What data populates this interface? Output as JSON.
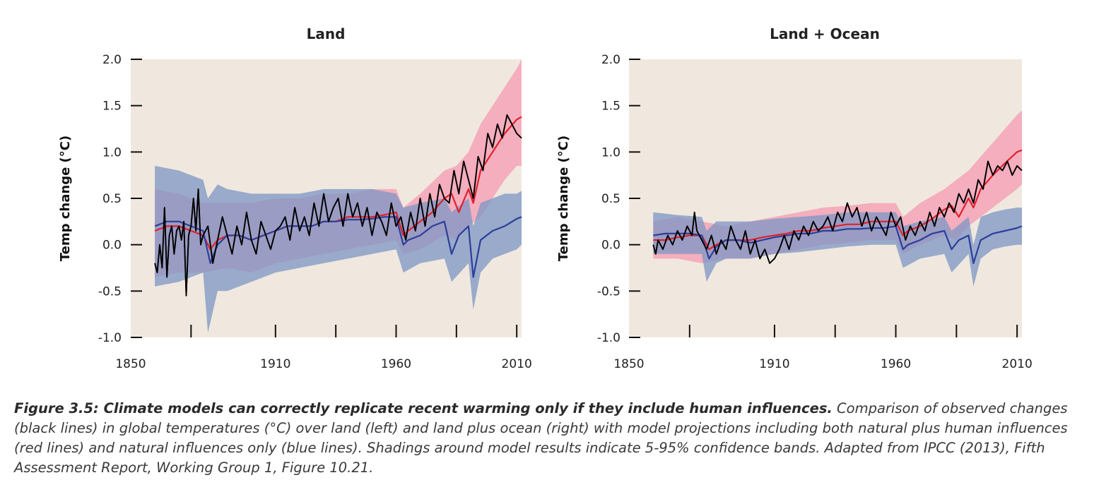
{
  "colors": {
    "plot_bg": "#f0e8de",
    "red_band": "#f4a3b8",
    "blue_band": "#7c95c4",
    "overlap_band": "#8878a8",
    "red_line": "#e1202e",
    "blue_line": "#2c3f9a",
    "obs_line": "#000000"
  },
  "chart_data": [
    {
      "type": "line",
      "title": "Land",
      "xlabel": "",
      "ylabel": "Temp change (°C)",
      "xlim": [
        1850,
        2012
      ],
      "ylim": [
        -1.0,
        2.0
      ],
      "x_ticks": [
        1850,
        1910,
        1960,
        2010
      ],
      "x_minor_ticks": [
        1875,
        1910,
        1935,
        1960,
        1985,
        2010
      ],
      "y_ticks": [
        "2.0",
        "1.5",
        "1.0",
        "0.5",
        "0.0",
        "-0.5",
        "-1.0"
      ],
      "grid": false,
      "series": [
        {
          "key": "obs",
          "x": [
            1860,
            1861,
            1862,
            1863,
            1864,
            1865,
            1866,
            1867,
            1868,
            1869,
            1870,
            1871,
            1872,
            1873,
            1874,
            1875,
            1876,
            1877,
            1878,
            1879,
            1880,
            1882,
            1884,
            1886,
            1888,
            1890,
            1892,
            1894,
            1896,
            1898,
            1900,
            1902,
            1904,
            1906,
            1908,
            1910,
            1912,
            1914,
            1916,
            1918,
            1920,
            1922,
            1924,
            1926,
            1928,
            1930,
            1932,
            1934,
            1936,
            1938,
            1940,
            1942,
            1944,
            1946,
            1948,
            1950,
            1952,
            1954,
            1956,
            1958,
            1960,
            1962,
            1964,
            1966,
            1968,
            1970,
            1972,
            1974,
            1976,
            1978,
            1980,
            1982,
            1984,
            1986,
            1988,
            1990,
            1992,
            1994,
            1996,
            1998,
            2000,
            2002,
            2004,
            2006,
            2008,
            2010,
            2012
          ],
          "y": [
            -0.2,
            -0.3,
            0.0,
            -0.25,
            0.4,
            -0.35,
            0.1,
            0.2,
            -0.1,
            0.15,
            0.2,
            0.05,
            0.25,
            -0.55,
            0.1,
            0.2,
            0.5,
            0.15,
            0.6,
            0.0,
            0.1,
            0.2,
            -0.2,
            0.05,
            0.3,
            0.1,
            -0.1,
            0.2,
            0.0,
            0.35,
            0.05,
            -0.1,
            0.25,
            0.1,
            -0.05,
            0.15,
            0.2,
            0.3,
            0.05,
            0.4,
            0.15,
            0.3,
            0.1,
            0.45,
            0.2,
            0.55,
            0.25,
            0.4,
            0.5,
            0.2,
            0.55,
            0.3,
            0.45,
            0.2,
            0.4,
            0.1,
            0.35,
            0.25,
            0.1,
            0.45,
            0.2,
            0.3,
            0.05,
            0.35,
            0.15,
            0.5,
            0.2,
            0.55,
            0.3,
            0.65,
            0.5,
            0.45,
            0.8,
            0.55,
            0.9,
            0.7,
            0.5,
            0.95,
            0.8,
            1.2,
            1.05,
            1.3,
            1.15,
            1.4,
            1.3,
            1.2,
            1.15
          ]
        },
        {
          "key": "red",
          "x": [
            1860,
            1865,
            1870,
            1875,
            1880,
            1883,
            1886,
            1890,
            1895,
            1900,
            1905,
            1910,
            1915,
            1920,
            1925,
            1930,
            1935,
            1940,
            1945,
            1950,
            1955,
            1960,
            1963,
            1965,
            1970,
            1975,
            1980,
            1983,
            1986,
            1990,
            1992,
            1995,
            2000,
            2005,
            2010,
            2012
          ],
          "y": [
            0.15,
            0.2,
            0.2,
            0.15,
            0.1,
            -0.05,
            0.05,
            0.1,
            0.1,
            0.05,
            0.1,
            0.15,
            0.2,
            0.2,
            0.2,
            0.25,
            0.25,
            0.3,
            0.3,
            0.3,
            0.32,
            0.35,
            0.1,
            0.15,
            0.25,
            0.35,
            0.5,
            0.55,
            0.35,
            0.6,
            0.45,
            0.8,
            1.0,
            1.2,
            1.35,
            1.38
          ]
        },
        {
          "key": "blue",
          "x": [
            1860,
            1865,
            1870,
            1875,
            1880,
            1883,
            1886,
            1890,
            1895,
            1900,
            1905,
            1910,
            1915,
            1920,
            1925,
            1930,
            1935,
            1940,
            1945,
            1950,
            1955,
            1960,
            1963,
            1965,
            1970,
            1975,
            1980,
            1983,
            1986,
            1990,
            1992,
            1995,
            2000,
            2005,
            2010,
            2012
          ],
          "y": [
            0.2,
            0.25,
            0.25,
            0.2,
            0.15,
            -0.2,
            0.0,
            0.1,
            0.1,
            0.05,
            0.1,
            0.15,
            0.2,
            0.2,
            0.2,
            0.25,
            0.25,
            0.27,
            0.27,
            0.28,
            0.3,
            0.3,
            0.0,
            0.05,
            0.1,
            0.2,
            0.25,
            -0.1,
            0.1,
            0.2,
            -0.35,
            0.05,
            0.15,
            0.2,
            0.28,
            0.3
          ]
        }
      ],
      "bands": [
        {
          "key": "red",
          "x": [
            1860,
            1870,
            1880,
            1890,
            1900,
            1910,
            1920,
            1930,
            1940,
            1950,
            1960,
            1963,
            1970,
            1980,
            1985,
            1990,
            1995,
            2000,
            2005,
            2010,
            2012
          ],
          "upper": [
            0.6,
            0.55,
            0.45,
            0.45,
            0.45,
            0.5,
            0.5,
            0.55,
            0.55,
            0.6,
            0.6,
            0.4,
            0.55,
            0.8,
            0.85,
            1.0,
            1.3,
            1.5,
            1.7,
            1.9,
            2.0
          ],
          "lower": [
            -0.35,
            -0.3,
            -0.3,
            -0.25,
            -0.3,
            -0.2,
            -0.15,
            -0.1,
            -0.05,
            0.0,
            0.05,
            -0.1,
            -0.05,
            0.1,
            0.05,
            0.2,
            0.3,
            0.5,
            0.7,
            0.85,
            0.85
          ]
        },
        {
          "key": "blue",
          "x": [
            1860,
            1870,
            1880,
            1882,
            1886,
            1890,
            1900,
            1910,
            1920,
            1930,
            1940,
            1950,
            1960,
            1963,
            1970,
            1980,
            1983,
            1990,
            1992,
            1995,
            2000,
            2005,
            2010,
            2012
          ],
          "upper": [
            0.85,
            0.8,
            0.7,
            0.5,
            0.65,
            0.6,
            0.55,
            0.55,
            0.55,
            0.6,
            0.6,
            0.6,
            0.55,
            0.4,
            0.45,
            0.5,
            0.35,
            0.5,
            0.2,
            0.45,
            0.5,
            0.55,
            0.55,
            0.58
          ],
          "lower": [
            -0.45,
            -0.4,
            -0.3,
            -0.95,
            -0.5,
            -0.5,
            -0.4,
            -0.3,
            -0.25,
            -0.2,
            -0.15,
            -0.1,
            -0.05,
            -0.3,
            -0.2,
            -0.15,
            -0.4,
            -0.2,
            -0.7,
            -0.3,
            -0.15,
            -0.1,
            -0.05,
            0.0
          ]
        }
      ]
    },
    {
      "type": "line",
      "title": "Land + Ocean",
      "xlabel": "",
      "ylabel": "Temp change (°C)",
      "xlim": [
        1850,
        2012
      ],
      "ylim": [
        -1.0,
        2.0
      ],
      "x_ticks": [
        1850,
        1910,
        1960,
        2010
      ],
      "x_minor_ticks": [
        1875,
        1910,
        1935,
        1960,
        1985,
        2010
      ],
      "y_ticks": [
        "2.0",
        "1.5",
        "1.0",
        "0.5",
        "0.0",
        "-0.5",
        "-1.0"
      ],
      "grid": false,
      "series": [
        {
          "key": "obs",
          "x": [
            1860,
            1861,
            1862,
            1864,
            1866,
            1868,
            1870,
            1872,
            1874,
            1876,
            1877,
            1878,
            1880,
            1882,
            1884,
            1886,
            1888,
            1890,
            1892,
            1894,
            1896,
            1898,
            1900,
            1902,
            1904,
            1906,
            1908,
            1910,
            1912,
            1914,
            1916,
            1918,
            1920,
            1922,
            1924,
            1926,
            1928,
            1930,
            1932,
            1934,
            1936,
            1938,
            1940,
            1942,
            1944,
            1946,
            1948,
            1950,
            1952,
            1954,
            1956,
            1958,
            1960,
            1962,
            1964,
            1966,
            1968,
            1970,
            1972,
            1974,
            1976,
            1978,
            1980,
            1982,
            1984,
            1986,
            1988,
            1990,
            1992,
            1994,
            1996,
            1998,
            2000,
            2002,
            2004,
            2006,
            2008,
            2010,
            2012
          ],
          "y": [
            0.0,
            -0.1,
            0.05,
            -0.05,
            0.1,
            0.0,
            0.15,
            0.05,
            0.2,
            0.1,
            0.35,
            0.15,
            0.05,
            -0.05,
            0.1,
            -0.1,
            0.05,
            -0.05,
            0.2,
            0.05,
            -0.05,
            0.15,
            -0.1,
            0.05,
            -0.15,
            -0.05,
            -0.2,
            -0.15,
            -0.05,
            0.1,
            -0.05,
            0.15,
            0.05,
            0.2,
            0.1,
            0.25,
            0.15,
            0.2,
            0.3,
            0.15,
            0.35,
            0.25,
            0.45,
            0.3,
            0.4,
            0.2,
            0.35,
            0.15,
            0.3,
            0.2,
            0.1,
            0.35,
            0.2,
            0.3,
            0.05,
            0.2,
            0.1,
            0.25,
            0.15,
            0.35,
            0.2,
            0.4,
            0.3,
            0.45,
            0.35,
            0.55,
            0.45,
            0.6,
            0.45,
            0.7,
            0.6,
            0.9,
            0.75,
            0.85,
            0.8,
            0.9,
            0.75,
            0.85,
            0.8
          ]
        },
        {
          "key": "red",
          "x": [
            1860,
            1865,
            1870,
            1875,
            1880,
            1883,
            1886,
            1890,
            1895,
            1900,
            1905,
            1910,
            1915,
            1920,
            1925,
            1930,
            1935,
            1940,
            1945,
            1950,
            1955,
            1960,
            1963,
            1965,
            1970,
            1975,
            1980,
            1983,
            1986,
            1990,
            1992,
            1995,
            2000,
            2005,
            2010,
            2012
          ],
          "y": [
            0.05,
            0.05,
            0.08,
            0.1,
            0.1,
            -0.05,
            0.0,
            0.05,
            0.05,
            0.05,
            0.08,
            0.1,
            0.12,
            0.15,
            0.15,
            0.18,
            0.2,
            0.22,
            0.22,
            0.25,
            0.25,
            0.25,
            0.1,
            0.15,
            0.2,
            0.28,
            0.38,
            0.42,
            0.3,
            0.5,
            0.4,
            0.6,
            0.75,
            0.88,
            1.0,
            1.02
          ]
        },
        {
          "key": "blue",
          "x": [
            1860,
            1865,
            1870,
            1875,
            1880,
            1883,
            1886,
            1890,
            1895,
            1900,
            1905,
            1910,
            1915,
            1920,
            1925,
            1930,
            1935,
            1940,
            1945,
            1950,
            1955,
            1960,
            1963,
            1965,
            1970,
            1975,
            1980,
            1983,
            1986,
            1990,
            1992,
            1995,
            2000,
            2005,
            2010,
            2012
          ],
          "y": [
            0.1,
            0.12,
            0.12,
            0.12,
            0.1,
            -0.15,
            -0.02,
            0.05,
            0.05,
            0.02,
            0.05,
            0.08,
            0.1,
            0.12,
            0.12,
            0.15,
            0.15,
            0.17,
            0.17,
            0.18,
            0.18,
            0.2,
            -0.05,
            0.0,
            0.05,
            0.12,
            0.15,
            -0.05,
            0.05,
            0.1,
            -0.2,
            0.05,
            0.12,
            0.15,
            0.18,
            0.2
          ]
        }
      ],
      "bands": [
        {
          "key": "red",
          "x": [
            1860,
            1870,
            1880,
            1890,
            1900,
            1910,
            1920,
            1930,
            1940,
            1950,
            1960,
            1963,
            1970,
            1980,
            1985,
            1990,
            1995,
            2000,
            2005,
            2010,
            2012
          ],
          "upper": [
            0.25,
            0.3,
            0.25,
            0.2,
            0.25,
            0.3,
            0.35,
            0.4,
            0.42,
            0.45,
            0.45,
            0.3,
            0.45,
            0.6,
            0.7,
            0.8,
            0.95,
            1.1,
            1.25,
            1.4,
            1.45
          ],
          "lower": [
            -0.15,
            -0.15,
            -0.2,
            -0.15,
            -0.15,
            -0.1,
            -0.05,
            0.0,
            0.02,
            0.05,
            0.05,
            -0.1,
            0.0,
            0.1,
            0.05,
            0.2,
            0.3,
            0.4,
            0.5,
            0.6,
            0.65
          ]
        },
        {
          "key": "blue",
          "x": [
            1860,
            1870,
            1880,
            1882,
            1886,
            1890,
            1900,
            1910,
            1920,
            1930,
            1940,
            1950,
            1960,
            1963,
            1970,
            1980,
            1983,
            1990,
            1992,
            1995,
            2000,
            2005,
            2010,
            2012
          ],
          "upper": [
            0.35,
            0.32,
            0.3,
            0.15,
            0.25,
            0.25,
            0.25,
            0.28,
            0.3,
            0.32,
            0.35,
            0.35,
            0.35,
            0.2,
            0.25,
            0.3,
            0.15,
            0.3,
            0.0,
            0.3,
            0.35,
            0.38,
            0.4,
            0.4
          ],
          "lower": [
            -0.1,
            -0.1,
            -0.1,
            -0.4,
            -0.2,
            -0.15,
            -0.15,
            -0.1,
            -0.08,
            -0.05,
            -0.02,
            0.0,
            0.0,
            -0.25,
            -0.15,
            -0.1,
            -0.3,
            -0.1,
            -0.45,
            -0.15,
            -0.05,
            -0.02,
            0.0,
            0.0
          ]
        }
      ]
    }
  ],
  "caption": {
    "bold": "Figure 3.5: Climate models can correctly replicate recent warming only if they include human influences.",
    "text": " Comparison of observed changes (black lines) in global temperatures (°C) over land (left) and land plus ocean (right) with model projections including both natural plus human influences (red lines) and natural influences only (blue lines). Shadings around model results indicate 5-95% confidence bands. Adapted from IPCC (2013), Fifth Assessment Report, Working Group 1, Figure 10.21."
  }
}
